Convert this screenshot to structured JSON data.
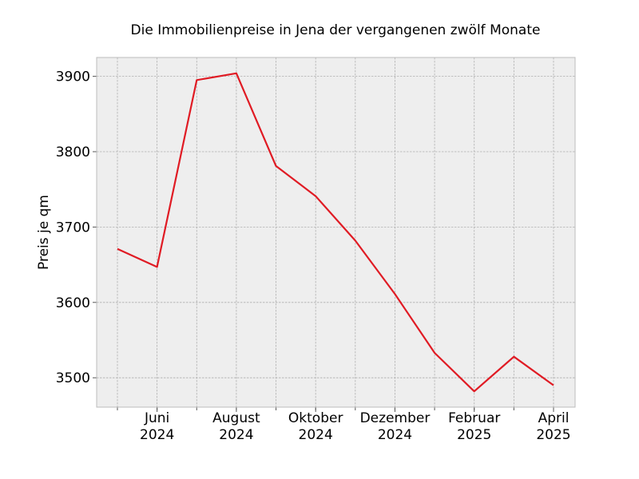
{
  "chart_data": {
    "type": "line",
    "title": "Die Immobilienpreise in Jena der vergangenen zwölf Monate",
    "xlabel": "",
    "ylabel": "Preis je qm",
    "x": [
      "2024-05",
      "2024-06",
      "2024-07",
      "2024-08",
      "2024-09",
      "2024-10",
      "2024-11",
      "2024-12",
      "2025-01",
      "2025-02",
      "2025-03",
      "2025-04"
    ],
    "x_tick_labels": [
      {
        "index": 1,
        "line1": "Juni",
        "line2": "2024"
      },
      {
        "index": 3,
        "line1": "August",
        "line2": "2024"
      },
      {
        "index": 5,
        "line1": "Oktober",
        "line2": "2024"
      },
      {
        "index": 7,
        "line1": "Dezember",
        "line2": "2024"
      },
      {
        "index": 9,
        "line1": "Februar",
        "line2": "2025"
      },
      {
        "index": 11,
        "line1": "April",
        "line2": "2025"
      }
    ],
    "series": [
      {
        "values": [
          3671,
          3647,
          3895,
          3904,
          3781,
          3741,
          3682,
          3611,
          3533,
          3482,
          3528,
          3490
        ],
        "color": "#e01b24"
      }
    ],
    "yticks": [
      3500,
      3600,
      3700,
      3800,
      3900
    ],
    "ylim": [
      3461,
      3925
    ],
    "grid": true,
    "legend": "none",
    "background_color": "#eeeeee",
    "frame_color": "#bcbcbc"
  }
}
